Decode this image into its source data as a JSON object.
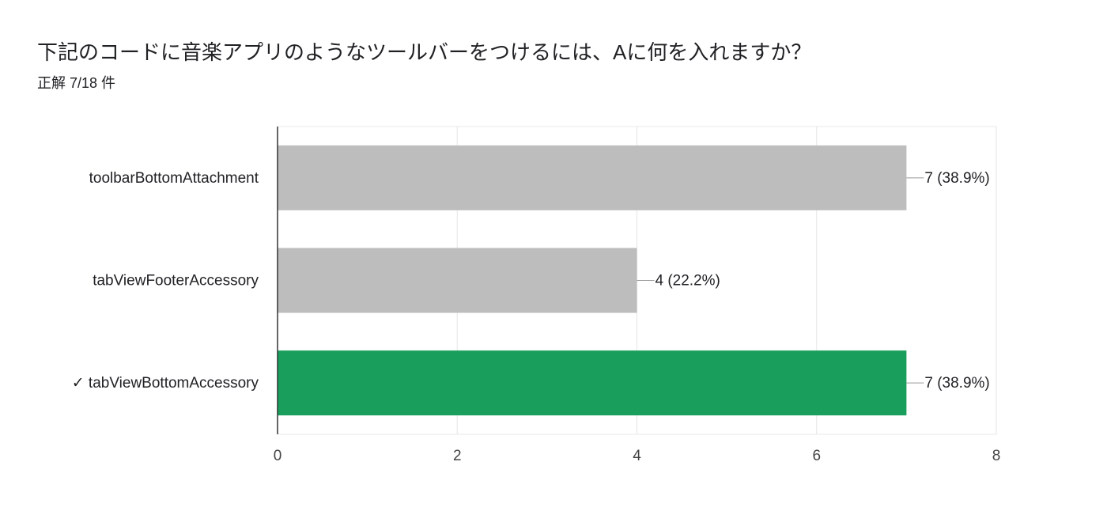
{
  "chart_data": {
    "type": "bar",
    "orientation": "horizontal",
    "title": "下記のコードに音楽アプリのようなツールバーをつけるには、Aに何を入れますか？",
    "subtitle": "正解 7/18 件",
    "categories": [
      "toolbarBottomAttachment",
      "tabViewFooterAccessory",
      "✓ tabViewBottomAccessory"
    ],
    "values": [
      7,
      4,
      7
    ],
    "value_labels": [
      "7 (38.9%)",
      "4 (22.2%)",
      "7 (38.9%)"
    ],
    "colors": [
      "#bdbdbd",
      "#bdbdbd",
      "#1a9e5c"
    ],
    "value_label_colors": [
      "#757575",
      "#757575",
      "#137333"
    ],
    "xlim": [
      0,
      8
    ],
    "xticks": [
      0,
      2,
      4,
      6,
      8
    ],
    "grid": true
  }
}
